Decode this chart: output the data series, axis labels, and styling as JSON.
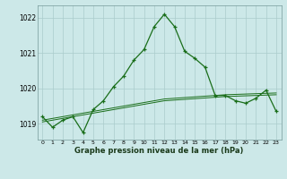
{
  "hours": [
    0,
    1,
    2,
    3,
    4,
    5,
    6,
    7,
    8,
    9,
    10,
    11,
    12,
    13,
    14,
    15,
    16,
    17,
    18,
    19,
    20,
    21,
    22,
    23
  ],
  "pressure": [
    1019.2,
    1018.9,
    1019.1,
    1019.2,
    1018.75,
    1019.4,
    1019.65,
    1020.05,
    1020.35,
    1020.8,
    1021.1,
    1021.75,
    1022.1,
    1021.75,
    1021.05,
    1020.85,
    1020.6,
    1019.8,
    1019.8,
    1019.65,
    1019.58,
    1019.72,
    1019.95,
    1019.35
  ],
  "trend1": [
    1019.1,
    1019.15,
    1019.2,
    1019.25,
    1019.3,
    1019.35,
    1019.4,
    1019.45,
    1019.5,
    1019.55,
    1019.6,
    1019.65,
    1019.7,
    1019.72,
    1019.74,
    1019.76,
    1019.78,
    1019.8,
    1019.82,
    1019.83,
    1019.84,
    1019.85,
    1019.86,
    1019.87
  ],
  "trend2": [
    1019.05,
    1019.1,
    1019.15,
    1019.2,
    1019.25,
    1019.3,
    1019.35,
    1019.4,
    1019.45,
    1019.5,
    1019.55,
    1019.6,
    1019.65,
    1019.67,
    1019.69,
    1019.71,
    1019.73,
    1019.75,
    1019.77,
    1019.78,
    1019.79,
    1019.8,
    1019.81,
    1019.82
  ],
  "line_color": "#1a6e1a",
  "bg_color": "#cce8e8",
  "grid_color": "#aacccc",
  "xlabel": "Graphe pression niveau de la mer (hPa)",
  "ylim_min": 1018.55,
  "ylim_max": 1022.35,
  "yticks": [
    1019,
    1020,
    1021,
    1022
  ],
  "xtick_labels": [
    "0",
    "1",
    "2",
    "3",
    "4",
    "5",
    "6",
    "7",
    "8",
    "9",
    "10",
    "11",
    "12",
    "13",
    "14",
    "15",
    "16",
    "17",
    "18",
    "19",
    "20",
    "21",
    "22",
    "23"
  ]
}
